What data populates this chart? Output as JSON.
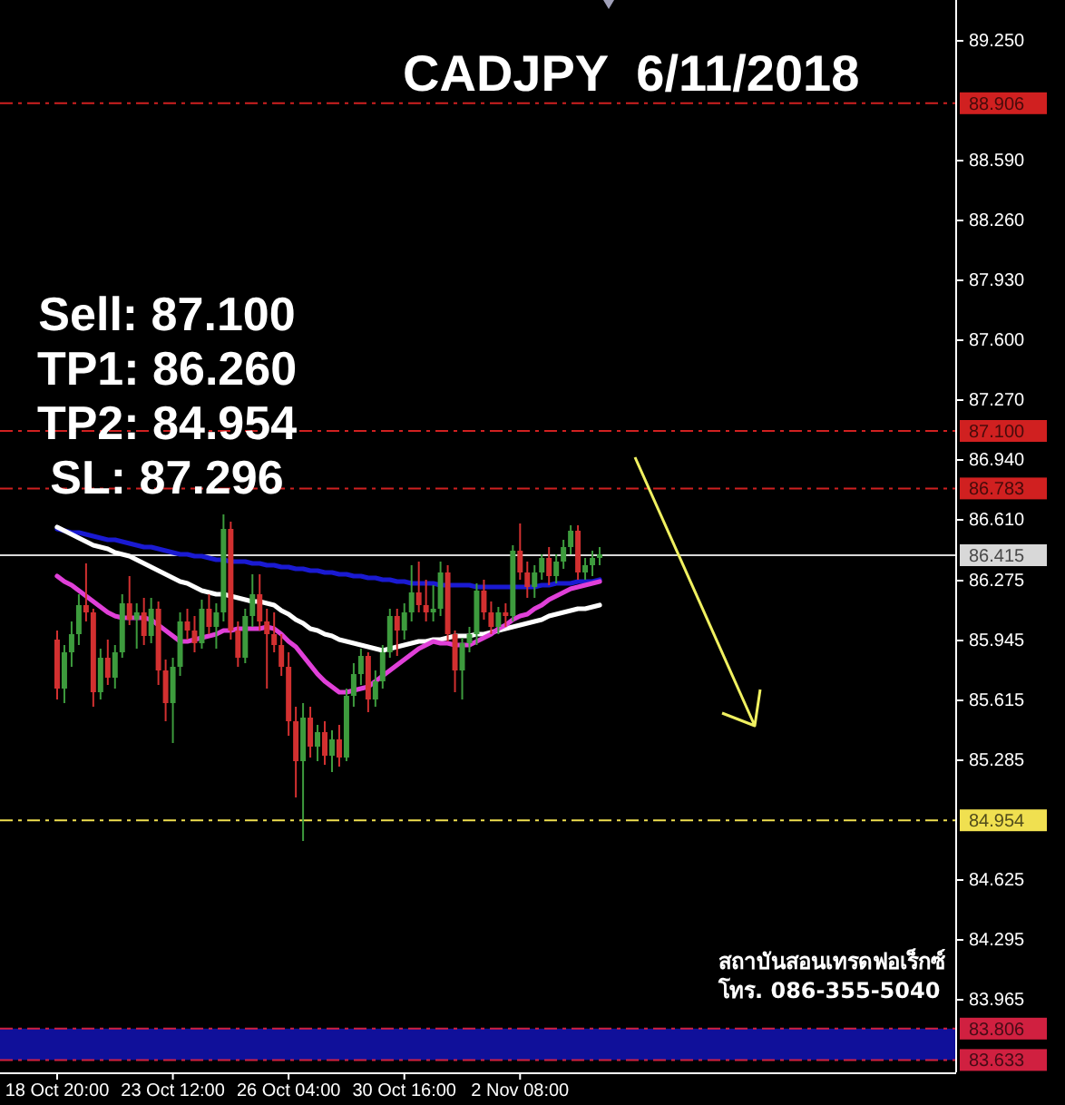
{
  "chart_data": {
    "type": "candlestick",
    "title": "CADJPY  6/11/2018",
    "categories": [
      "18 Oct 20:00",
      null,
      null,
      null,
      null,
      null,
      null,
      null,
      null,
      null,
      null,
      null,
      null,
      null,
      null,
      null,
      "23 Oct 12:00",
      null,
      null,
      null,
      null,
      null,
      null,
      null,
      null,
      null,
      null,
      null,
      null,
      null,
      null,
      null,
      "26 Oct 04:00",
      null,
      null,
      null,
      null,
      null,
      null,
      null,
      null,
      null,
      null,
      null,
      null,
      null,
      null,
      null,
      "30 Oct 16:00",
      null,
      null,
      null,
      null,
      null,
      null,
      null,
      null,
      null,
      null,
      null,
      null,
      null,
      null,
      null,
      "2 Nov 08:00",
      null,
      null,
      null,
      null,
      null,
      null,
      null,
      null,
      null,
      null,
      null
    ],
    "ohlc": [
      [
        85.95,
        86.0,
        85.62,
        85.68
      ],
      [
        85.68,
        85.92,
        85.6,
        85.88
      ],
      [
        85.88,
        86.05,
        85.8,
        85.98
      ],
      [
        85.98,
        86.2,
        85.92,
        86.14
      ],
      [
        86.14,
        86.37,
        86.05,
        86.1
      ],
      [
        86.1,
        86.12,
        85.58,
        85.66
      ],
      [
        85.66,
        85.9,
        85.62,
        85.85
      ],
      [
        85.85,
        85.95,
        85.7,
        85.74
      ],
      [
        85.74,
        85.92,
        85.68,
        85.88
      ],
      [
        85.88,
        86.2,
        85.85,
        86.15
      ],
      [
        86.15,
        86.3,
        86.03,
        86.06
      ],
      [
        86.06,
        86.15,
        85.9,
        86.1
      ],
      [
        86.1,
        86.18,
        85.92,
        85.97
      ],
      [
        85.97,
        86.18,
        85.93,
        86.12
      ],
      [
        86.12,
        86.16,
        85.7,
        85.78
      ],
      [
        85.78,
        85.84,
        85.5,
        85.6
      ],
      [
        85.6,
        85.85,
        85.38,
        85.8
      ],
      [
        85.8,
        86.1,
        85.75,
        86.05
      ],
      [
        86.05,
        86.12,
        85.95,
        86.0
      ],
      [
        86.0,
        86.08,
        85.88,
        85.93
      ],
      [
        85.93,
        86.17,
        85.9,
        86.12
      ],
      [
        86.12,
        86.2,
        85.98,
        86.02
      ],
      [
        86.02,
        86.15,
        85.9,
        86.1
      ],
      [
        86.1,
        86.64,
        86.05,
        86.56
      ],
      [
        86.56,
        86.6,
        85.95,
        86.0
      ],
      [
        86.0,
        86.05,
        85.8,
        85.85
      ],
      [
        85.85,
        86.12,
        85.82,
        86.08
      ],
      [
        86.08,
        86.31,
        86.02,
        86.2
      ],
      [
        86.2,
        86.31,
        86.0,
        86.05
      ],
      [
        86.05,
        86.12,
        85.68,
        85.98
      ],
      [
        85.98,
        86.1,
        85.88,
        85.92
      ],
      [
        85.92,
        85.98,
        85.75,
        85.8
      ],
      [
        85.8,
        85.88,
        85.42,
        85.5
      ],
      [
        85.5,
        85.58,
        85.08,
        85.28
      ],
      [
        85.28,
        85.6,
        84.84,
        85.52
      ],
      [
        85.52,
        85.58,
        85.3,
        85.36
      ],
      [
        85.36,
        85.48,
        85.28,
        85.44
      ],
      [
        85.44,
        85.5,
        85.26,
        85.31
      ],
      [
        85.31,
        85.45,
        85.22,
        85.4
      ],
      [
        85.4,
        85.48,
        85.25,
        85.3
      ],
      [
        85.3,
        85.68,
        85.28,
        85.64
      ],
      [
        85.64,
        85.82,
        85.58,
        85.76
      ],
      [
        85.76,
        85.9,
        85.7,
        85.86
      ],
      [
        85.86,
        85.88,
        85.55,
        85.62
      ],
      [
        85.62,
        85.78,
        85.58,
        85.72
      ],
      [
        85.72,
        85.92,
        85.68,
        85.88
      ],
      [
        85.88,
        86.12,
        85.85,
        86.08
      ],
      [
        86.08,
        86.12,
        85.86,
        86.0
      ],
      [
        86.0,
        86.15,
        85.95,
        86.1
      ],
      [
        86.1,
        86.36,
        86.05,
        86.21
      ],
      [
        86.21,
        86.38,
        86.1,
        86.14
      ],
      [
        86.14,
        86.28,
        86.05,
        86.1
      ],
      [
        86.1,
        86.25,
        86.05,
        86.12
      ],
      [
        86.12,
        86.38,
        86.08,
        86.32
      ],
      [
        86.32,
        86.36,
        85.94,
        85.98
      ],
      [
        85.98,
        86.0,
        85.66,
        85.78
      ],
      [
        85.78,
        85.96,
        85.62,
        85.93
      ],
      [
        85.93,
        86.02,
        85.88,
        85.98
      ],
      [
        85.98,
        86.26,
        85.92,
        86.22
      ],
      [
        86.22,
        86.28,
        86.06,
        86.1
      ],
      [
        86.1,
        86.16,
        85.98,
        86.02
      ],
      [
        86.02,
        86.13,
        85.98,
        86.1
      ],
      [
        86.1,
        86.15,
        86.02,
        86.08
      ],
      [
        86.08,
        86.47,
        86.05,
        86.44
      ],
      [
        86.44,
        86.59,
        86.28,
        86.32
      ],
      [
        86.32,
        86.38,
        86.18,
        86.24
      ],
      [
        86.24,
        86.36,
        86.18,
        86.32
      ],
      [
        86.32,
        86.42,
        86.28,
        86.4
      ],
      [
        86.4,
        86.46,
        86.25,
        86.3
      ],
      [
        86.3,
        86.42,
        86.26,
        86.38
      ],
      [
        86.38,
        86.5,
        86.34,
        86.46
      ],
      [
        86.46,
        86.58,
        86.42,
        86.55
      ],
      [
        86.55,
        86.58,
        86.28,
        86.32
      ],
      [
        86.32,
        86.4,
        86.28,
        86.36
      ],
      [
        86.36,
        86.44,
        86.3,
        86.4
      ],
      [
        86.4,
        86.46,
        86.36,
        86.42
      ]
    ],
    "colors": [
      "#d23030",
      "#3d9b3d",
      "#3d9b3d",
      "#3d9b3d",
      "#d23030",
      "#d23030",
      "#3d9b3d",
      "#d23030",
      "#3d9b3d",
      "#3d9b3d",
      "#d23030",
      "#3d9b3d",
      "#d23030",
      "#3d9b3d",
      "#d23030",
      "#d23030",
      "#3d9b3d",
      "#3d9b3d",
      "#d23030",
      "#d23030",
      "#3d9b3d",
      "#d23030",
      "#3d9b3d",
      "#3d9b3d",
      "#d23030",
      "#d23030",
      "#3d9b3d",
      "#3d9b3d",
      "#d23030",
      "#d23030",
      "#d23030",
      "#d23030",
      "#d23030",
      "#d23030",
      "#3d9b3d",
      "#d23030",
      "#3d9b3d",
      "#d23030",
      "#3d9b3d",
      "#d23030",
      "#3d9b3d",
      "#3d9b3d",
      "#3d9b3d",
      "#d23030",
      "#3d9b3d",
      "#3d9b3d",
      "#3d9b3d",
      "#d23030",
      "#3d9b3d",
      "#3d9b3d",
      "#d23030",
      "#d23030",
      "#3d9b3d",
      "#3d9b3d",
      "#d23030",
      "#d23030",
      "#3d9b3d",
      "#3d9b3d",
      "#3d9b3d",
      "#d23030",
      "#d23030",
      "#3d9b3d",
      "#d23030",
      "#3d9b3d",
      "#d23030",
      "#d23030",
      "#3d9b3d",
      "#3d9b3d",
      "#d23030",
      "#3d9b3d",
      "#3d9b3d",
      "#3d9b3d",
      "#d23030",
      "#3d9b3d",
      "#3d9b3d",
      "#3d9b3d"
    ],
    "series": [
      {
        "type": "line",
        "color": "#1a1ad2",
        "values": [
          86.56,
          86.55,
          86.54,
          86.54,
          86.53,
          86.52,
          86.51,
          86.5,
          86.5,
          86.49,
          86.48,
          86.47,
          86.46,
          86.46,
          86.45,
          86.44,
          86.43,
          86.42,
          86.42,
          86.41,
          86.41,
          86.4,
          86.39,
          86.39,
          86.38,
          86.38,
          86.38,
          86.37,
          86.37,
          86.36,
          86.36,
          86.35,
          86.35,
          86.34,
          86.34,
          86.33,
          86.33,
          86.32,
          86.32,
          86.31,
          86.31,
          86.3,
          86.3,
          86.29,
          86.29,
          86.28,
          86.28,
          86.27,
          86.27,
          86.26,
          86.26,
          86.26,
          86.26,
          86.25,
          86.25,
          86.25,
          86.25,
          86.25,
          86.24,
          86.24,
          86.24,
          86.24,
          86.24,
          86.24,
          86.24,
          86.24,
          86.24,
          86.25,
          86.25,
          86.26,
          86.26,
          86.26,
          86.27,
          86.27,
          86.27,
          86.28
        ]
      },
      {
        "type": "line",
        "color": "#ffffff",
        "values": [
          86.57,
          86.55,
          86.53,
          86.51,
          86.49,
          86.47,
          86.46,
          86.45,
          86.43,
          86.42,
          86.41,
          86.39,
          86.37,
          86.35,
          86.33,
          86.31,
          86.29,
          86.27,
          86.26,
          86.24,
          86.22,
          86.21,
          86.2,
          86.2,
          86.19,
          86.18,
          86.17,
          86.16,
          86.16,
          86.15,
          86.14,
          86.11,
          86.09,
          86.06,
          86.04,
          86.01,
          86.0,
          85.98,
          85.97,
          85.95,
          85.94,
          85.93,
          85.92,
          85.91,
          85.9,
          85.89,
          85.9,
          85.91,
          85.92,
          85.93,
          85.94,
          85.94,
          85.95,
          85.95,
          85.96,
          85.97,
          85.97,
          85.97,
          85.98,
          85.98,
          85.99,
          86.0,
          86.01,
          86.02,
          86.03,
          86.04,
          86.05,
          86.06,
          86.08,
          86.09,
          86.1,
          86.11,
          86.12,
          86.12,
          86.13,
          86.14
        ]
      },
      {
        "type": "line",
        "color": "#e040d8",
        "values": [
          86.3,
          86.27,
          86.25,
          86.22,
          86.19,
          86.16,
          86.13,
          86.1,
          86.08,
          86.07,
          86.07,
          86.07,
          86.07,
          86.06,
          86.03,
          86.0,
          85.97,
          85.94,
          85.94,
          85.95,
          85.96,
          85.97,
          85.98,
          86.0,
          86.0,
          86.01,
          86.01,
          86.01,
          86.01,
          86.02,
          86.01,
          85.98,
          85.94,
          85.91,
          85.86,
          85.81,
          85.76,
          85.72,
          85.69,
          85.66,
          85.66,
          85.67,
          85.68,
          85.69,
          85.72,
          85.75,
          85.78,
          85.81,
          85.84,
          85.87,
          85.9,
          85.92,
          85.94,
          85.93,
          85.93,
          85.92,
          85.92,
          85.92,
          85.94,
          85.96,
          85.98,
          86.01,
          86.03,
          86.06,
          86.08,
          86.09,
          86.12,
          86.14,
          86.17,
          86.19,
          86.21,
          86.23,
          86.24,
          86.25,
          86.26,
          86.27
        ]
      }
    ],
    "ylim": [
      83.565,
      89.475
    ],
    "yticks": [
      {
        "value": 89.25,
        "label": "89.250"
      },
      {
        "value": 88.59,
        "label": "88.590"
      },
      {
        "value": 88.26,
        "label": "88.260"
      },
      {
        "value": 87.93,
        "label": "87.930"
      },
      {
        "value": 87.6,
        "label": "87.600"
      },
      {
        "value": 87.27,
        "label": "87.270"
      },
      {
        "value": 86.94,
        "label": "86.940"
      },
      {
        "value": 86.61,
        "label": "86.610"
      },
      86.275,
      85.945,
      85.615,
      85.285,
      84.625,
      84.295,
      83.965
    ],
    "ref_lines": [
      {
        "axis": "y",
        "value": 88.906,
        "label": "88.906",
        "color": "#d02020",
        "line_style": "dashed"
      },
      {
        "axis": "y",
        "value": 87.1,
        "label": "87.100",
        "color": "#d02020",
        "line_style": "dashed"
      },
      {
        "axis": "y",
        "value": 86.783,
        "label": "86.783",
        "color": "#d02020",
        "line_style": "dashed"
      },
      {
        "axis": "y",
        "value": 86.415,
        "label": "86.415",
        "color": "#d8d8d8",
        "line_style": "solid"
      },
      {
        "axis": "y",
        "value": 84.954,
        "label": "84.954",
        "color": "#f0e050",
        "line_style": "dashed"
      },
      {
        "axis": "y",
        "value": 83.806,
        "label": "83.806",
        "color": "#d02040",
        "line_style": "dashed"
      },
      {
        "axis": "y",
        "value": 83.633,
        "label": "83.633",
        "color": "#d02040",
        "line_style": "dashed"
      }
    ],
    "bands": [
      {
        "axis": "y",
        "from": 83.633,
        "to": 83.806,
        "color": "#10109a"
      }
    ],
    "annotations": [
      "Sell: 87.100",
      "TP1: 86.260",
      "TP2: 84.954",
      "SL: 87.296",
      "สถาบันสอนเทรดฟอเร็กซ์",
      "โทร. 086-355-5040"
    ]
  }
}
